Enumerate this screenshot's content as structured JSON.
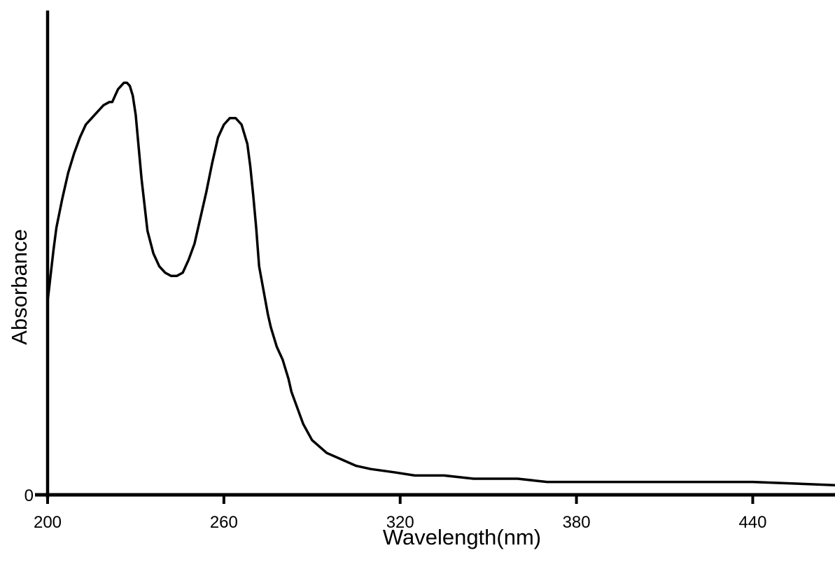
{
  "chart_data": {
    "type": "line",
    "title": "",
    "xlabel": "Wavelength(nm)",
    "ylabel": "Absorbance",
    "xlim": [
      200,
      468
    ],
    "ylim": [
      0,
      1.5
    ],
    "grid": false,
    "line_color": "#000000",
    "axis_color": "#000000",
    "x_ticks": [
      {
        "value": 200,
        "label": "200"
      },
      {
        "value": 260,
        "label": "260"
      },
      {
        "value": 320,
        "label": "320"
      },
      {
        "value": 380,
        "label": "380"
      },
      {
        "value": 440,
        "label": "440"
      }
    ],
    "y_ticks": [
      {
        "value": 0,
        "label": "0"
      }
    ],
    "series": [
      {
        "x": [
          200,
          201,
          202,
          203,
          205,
          207,
          209,
          211,
          213,
          214,
          216,
          218,
          219,
          221,
          222,
          223,
          224,
          225,
          226,
          227,
          228,
          229,
          230,
          231,
          232,
          233,
          234,
          236,
          238,
          240,
          242,
          244,
          246,
          248,
          250,
          252,
          254,
          256,
          258,
          260,
          262,
          264,
          266,
          268,
          269,
          270,
          271,
          272,
          273,
          274,
          275,
          276,
          277,
          278,
          279,
          280,
          281,
          282,
          283,
          285,
          287,
          290,
          295,
          300,
          305,
          310,
          318,
          325,
          335,
          345,
          347,
          360,
          370,
          378,
          385,
          400,
          420,
          440,
          468
        ],
        "y": [
          0.6,
          0.68,
          0.76,
          0.83,
          0.92,
          1.0,
          1.06,
          1.11,
          1.15,
          1.16,
          1.18,
          1.2,
          1.21,
          1.22,
          1.22,
          1.24,
          1.26,
          1.27,
          1.28,
          1.28,
          1.27,
          1.24,
          1.18,
          1.08,
          0.98,
          0.9,
          0.82,
          0.75,
          0.71,
          0.69,
          0.68,
          0.68,
          0.69,
          0.73,
          0.78,
          0.86,
          0.94,
          1.03,
          1.11,
          1.15,
          1.17,
          1.17,
          1.15,
          1.09,
          1.02,
          0.93,
          0.83,
          0.71,
          0.66,
          0.61,
          0.56,
          0.52,
          0.49,
          0.46,
          0.44,
          0.42,
          0.39,
          0.36,
          0.32,
          0.27,
          0.22,
          0.17,
          0.13,
          0.11,
          0.09,
          0.08,
          0.07,
          0.06,
          0.06,
          0.05,
          0.05,
          0.05,
          0.04,
          0.04,
          0.04,
          0.04,
          0.04,
          0.04,
          0.03
        ]
      }
    ]
  }
}
